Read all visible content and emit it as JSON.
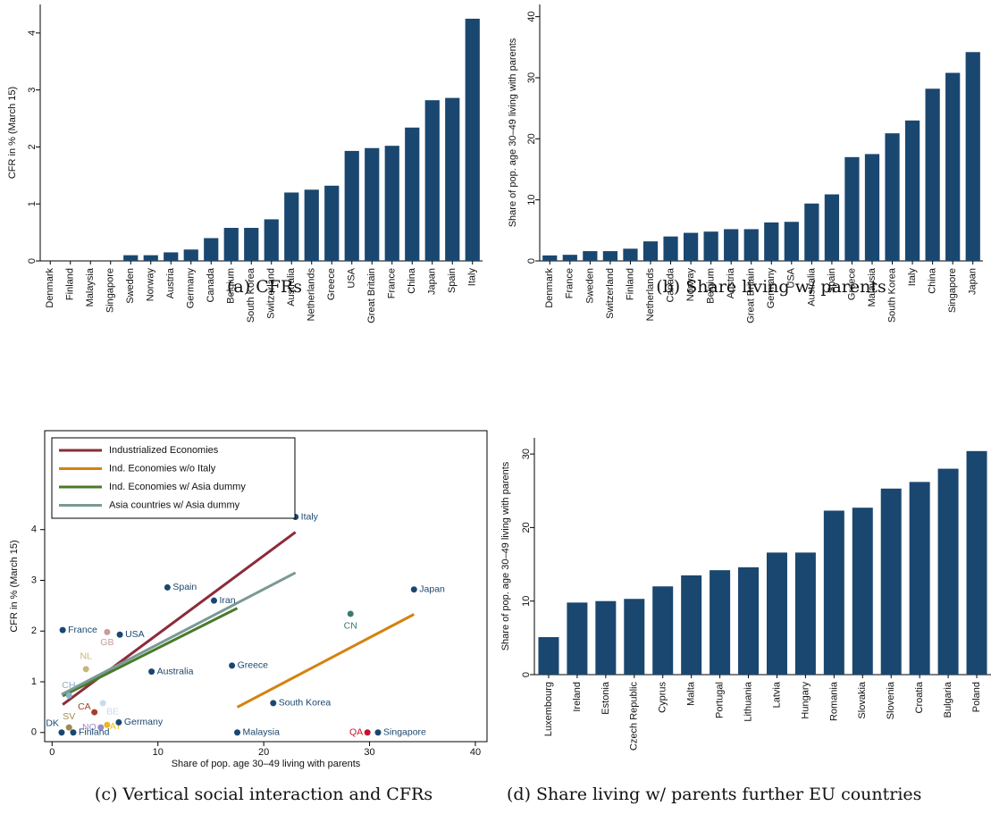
{
  "chart_data": [
    {
      "type": "bar",
      "caption": "(a)  CFRs",
      "y_label": "CFR in % (March 15)",
      "color": "#1a476f",
      "categories": [
        "Denmark",
        "Finland",
        "Malaysia",
        "Singapore",
        "Sweden",
        "Norway",
        "Austria",
        "Germany",
        "Canada",
        "Belgium",
        "South Korea",
        "Switzerland",
        "Australia",
        "Netherlands",
        "Greece",
        "USA",
        "Great Britain",
        "France",
        "China",
        "Japan",
        "Spain",
        "Italy"
      ],
      "values": [
        0,
        0,
        0,
        0,
        0.1,
        0.1,
        0.15,
        0.2,
        0.4,
        0.58,
        0.58,
        0.73,
        1.2,
        1.25,
        1.32,
        1.93,
        1.98,
        2.02,
        2.34,
        2.82,
        2.86,
        4.25
      ],
      "ylim": [
        0,
        4.5
      ],
      "yticks": [
        0,
        1,
        2,
        3,
        4
      ]
    },
    {
      "type": "bar",
      "caption": "(b)  Share living w/ parents",
      "y_label": "Share of pop. age 30–49 living with parents",
      "color": "#1a476f",
      "categories": [
        "Denmark",
        "France",
        "Sweden",
        "Switzerland",
        "Finland",
        "Netherlands",
        "Canada",
        "Norway",
        "Belgium",
        "Austria",
        "Great Britain",
        "Germany",
        "USA",
        "Australia",
        "Spain",
        "Greece",
        "Malaysia",
        "South Korea",
        "Italy",
        "China",
        "Singapore",
        "Japan"
      ],
      "values": [
        0.9,
        1.0,
        1.6,
        1.6,
        2.0,
        3.2,
        4.0,
        4.6,
        4.8,
        5.2,
        5.2,
        6.3,
        6.4,
        9.4,
        10.9,
        17.0,
        17.5,
        20.9,
        23.0,
        28.2,
        30.8,
        34.2
      ],
      "ylim": [
        0,
        42
      ],
      "yticks": [
        0,
        10,
        20,
        30,
        40
      ]
    },
    {
      "type": "scatter",
      "caption": "(c)  Vertical social interaction and CFRs",
      "x_label": "Share of pop. age 30–49 living with parents",
      "y_label": "CFR in % (March 15)",
      "xlim": [
        -0.7,
        41.1
      ],
      "xticks": [
        0,
        10,
        20,
        30,
        40
      ],
      "ylim": [
        -0.18,
        5.95
      ],
      "yticks": [
        0,
        1,
        2,
        3,
        4
      ],
      "points": [
        {
          "label": "Italy",
          "x": 23.0,
          "y": 4.25,
          "color": "#1a476f"
        },
        {
          "label": "Spain",
          "x": 10.9,
          "y": 2.86,
          "color": "#1a476f"
        },
        {
          "label": "Iran",
          "x": 15.3,
          "y": 2.6,
          "color": "#1a476f"
        },
        {
          "label": "Japan",
          "x": 34.2,
          "y": 2.82,
          "color": "#1a476f"
        },
        {
          "label": "CN",
          "x": 28.2,
          "y": 2.34,
          "color": "#3a7a6e"
        },
        {
          "label": "France",
          "x": 1.0,
          "y": 2.02,
          "color": "#1a476f"
        },
        {
          "label": "GB",
          "x": 5.2,
          "y": 1.98,
          "color": "#c89b9b"
        },
        {
          "label": "USA",
          "x": 6.4,
          "y": 1.93,
          "color": "#1a476f"
        },
        {
          "label": "NL",
          "x": 3.2,
          "y": 1.25,
          "color": "#c8b47a"
        },
        {
          "label": "Australia",
          "x": 9.4,
          "y": 1.2,
          "color": "#1a476f"
        },
        {
          "label": "Greece",
          "x": 17.0,
          "y": 1.32,
          "color": "#1a476f"
        },
        {
          "label": "CH",
          "x": 1.6,
          "y": 0.73,
          "color": "#8ab0c8"
        },
        {
          "label": "BE",
          "x": 4.8,
          "y": 0.58,
          "color": "#c8dce8"
        },
        {
          "label": "South Korea",
          "x": 20.9,
          "y": 0.58,
          "color": "#1a476f"
        },
        {
          "label": "CA",
          "x": 4.0,
          "y": 0.4,
          "color": "#a0402a"
        },
        {
          "label": "SV",
          "x": 1.6,
          "y": 0.1,
          "color": "#a08a50"
        },
        {
          "label": "NO",
          "x": 4.6,
          "y": 0.1,
          "color": "#9a8ac8"
        },
        {
          "label": "AT",
          "x": 5.2,
          "y": 0.15,
          "color": "#e8b820"
        },
        {
          "label": "Germany",
          "x": 6.3,
          "y": 0.2,
          "color": "#1a476f"
        },
        {
          "label": "DK",
          "x": 0.9,
          "y": 0,
          "color": "#1a476f"
        },
        {
          "label": "Finland",
          "x": 2.0,
          "y": 0,
          "color": "#1a476f"
        },
        {
          "label": "Malaysia",
          "x": 17.5,
          "y": 0,
          "color": "#1a476f"
        },
        {
          "label": "QA",
          "x": 29.8,
          "y": 0,
          "color": "#c8102e"
        },
        {
          "label": "Singapore",
          "x": 30.8,
          "y": 0,
          "color": "#1a476f"
        }
      ],
      "lines": [
        {
          "name": "Industrialized Economies",
          "color": "#8b2c3a",
          "x": [
            1,
            23
          ],
          "values": [
            0.55,
            3.95
          ]
        },
        {
          "name": "Ind. Economies w/o Italy",
          "color": "#d4820f",
          "x": [
            17.5,
            34.2
          ],
          "values": [
            0.5,
            2.33
          ]
        },
        {
          "name": "Ind. Economies w/ Asia dummy",
          "color": "#4a7a2a",
          "x": [
            1,
            17.5
          ],
          "values": [
            0.72,
            2.45
          ]
        },
        {
          "name": "Asia countries w/ Asia dummy",
          "color": "#7a9a94",
          "x": [
            0.9,
            23
          ],
          "values": [
            0.75,
            3.15
          ]
        }
      ]
    },
    {
      "type": "bar",
      "caption": "(d)  Share living w/ parents further EU countries",
      "y_label": "Share of pop. age 30–49 living with parents",
      "color": "#1a476f",
      "categories": [
        "Luxembourg",
        "Ireland",
        "Estonia",
        "Czech Republic",
        "Cyprus",
        "Malta",
        "Portugal",
        "Lithuania",
        "Latvia",
        "Hungary",
        "Romania",
        "Slovakia",
        "Slovenia",
        "Croatia",
        "Bulgaria",
        "Poland"
      ],
      "values": [
        5.1,
        9.8,
        10.0,
        10.3,
        12.0,
        13.5,
        14.2,
        14.6,
        16.6,
        16.6,
        22.3,
        22.7,
        25.3,
        26.2,
        28.0,
        30.4
      ],
      "ylim": [
        0,
        32.2
      ],
      "yticks": [
        0,
        10,
        20,
        30
      ]
    }
  ]
}
